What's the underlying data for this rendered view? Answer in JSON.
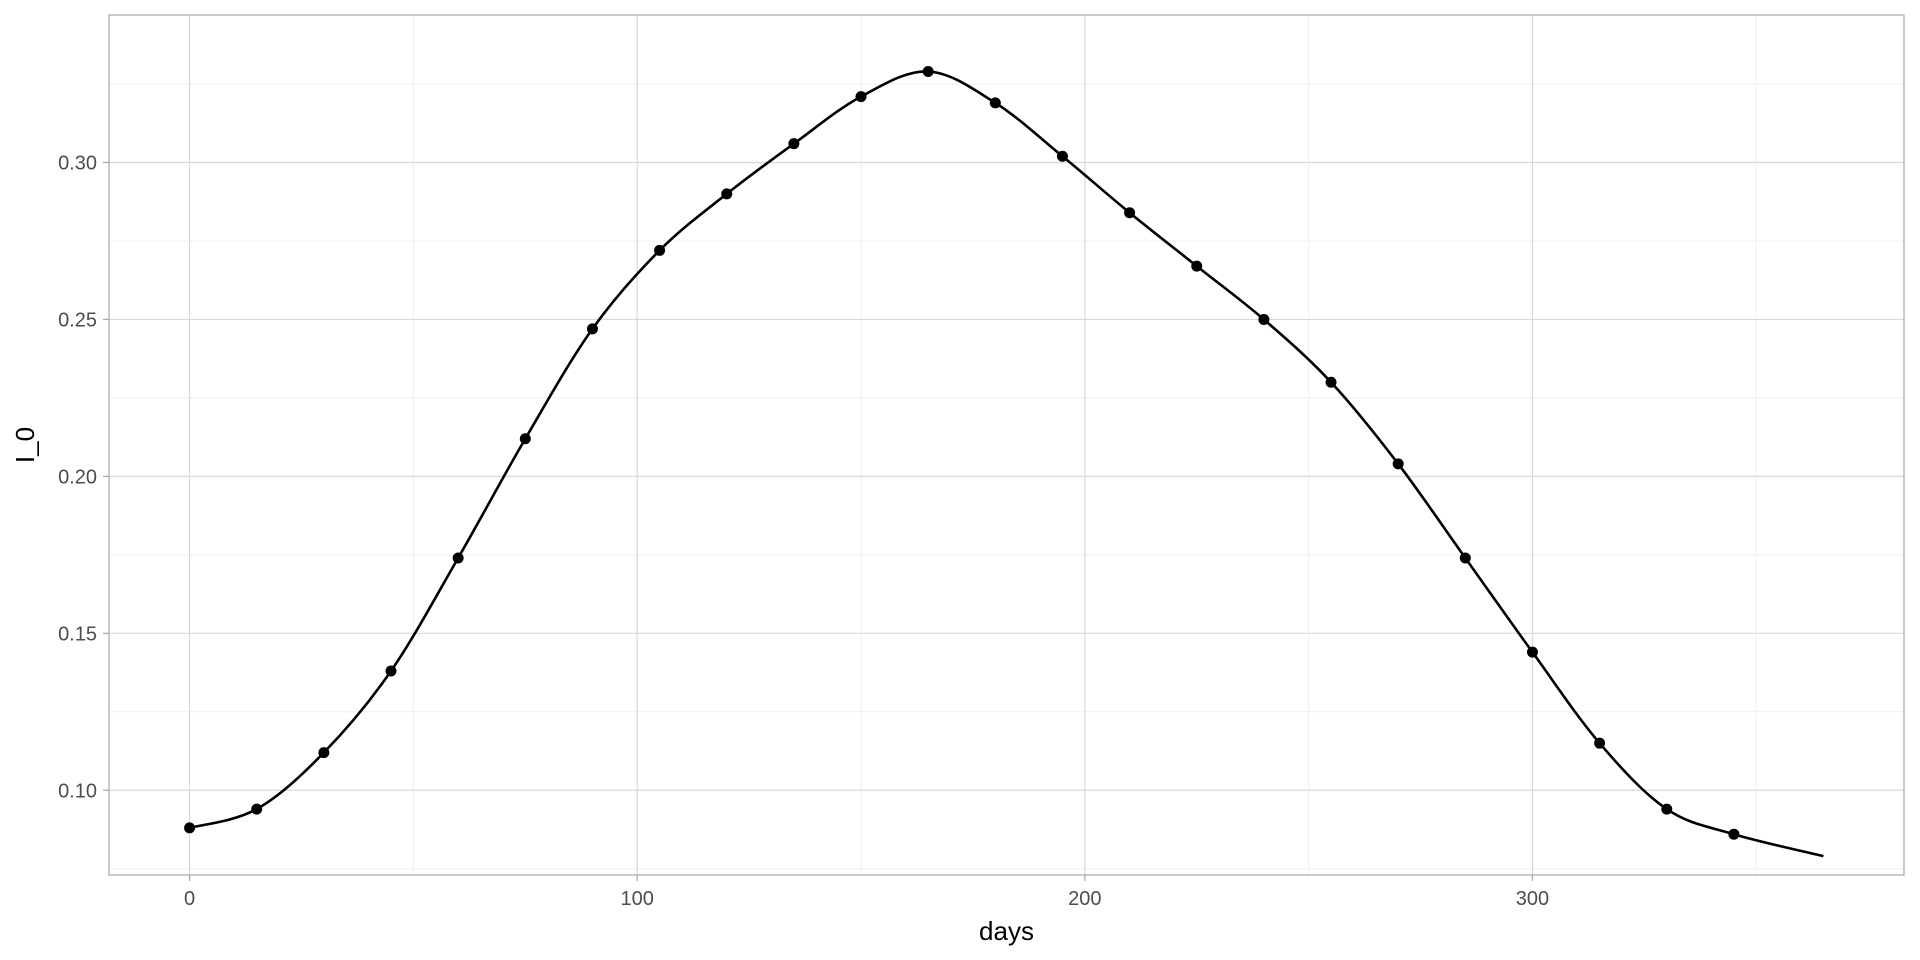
{
  "chart_data": {
    "type": "line",
    "title": "",
    "xlabel": "days",
    "ylabel": "I_0",
    "xlim": [
      -18,
      383
    ],
    "ylim": [
      0.073,
      0.347
    ],
    "x_major_ticks": [
      0,
      100,
      200,
      300
    ],
    "x_tick_labels": [
      "0",
      "100",
      "200",
      "300"
    ],
    "x_minor_ticks": [
      50,
      150,
      250,
      350
    ],
    "y_major_ticks": [
      0.1,
      0.15,
      0.2,
      0.25,
      0.3
    ],
    "y_tick_labels": [
      "0.10",
      "0.15",
      "0.20",
      "0.25",
      "0.30"
    ],
    "y_minor_ticks": [
      0.075,
      0.125,
      0.175,
      0.225,
      0.275,
      0.325
    ],
    "grid": true,
    "legend": "none",
    "series": [
      {
        "mark": "points",
        "color": "#000000",
        "x": [
          0,
          15,
          30,
          45,
          60,
          75,
          90,
          105,
          120,
          135,
          150,
          165,
          180,
          195,
          210,
          225,
          240,
          255,
          270,
          285,
          300,
          315,
          330,
          345
        ],
        "y": [
          0.088,
          0.094,
          0.112,
          0.138,
          0.174,
          0.212,
          0.247,
          0.272,
          0.29,
          0.306,
          0.321,
          0.329,
          0.319,
          0.302,
          0.284,
          0.267,
          0.25,
          0.23,
          0.204,
          0.174,
          0.144,
          0.115,
          0.094,
          0.086
        ]
      },
      {
        "mark": "smooth-line",
        "color": "#000000",
        "x": [
          0,
          15,
          30,
          45,
          60,
          75,
          90,
          105,
          120,
          135,
          150,
          165,
          180,
          195,
          210,
          225,
          240,
          255,
          270,
          285,
          300,
          315,
          330,
          345,
          365
        ],
        "y": [
          0.088,
          0.094,
          0.112,
          0.138,
          0.174,
          0.212,
          0.247,
          0.272,
          0.29,
          0.306,
          0.321,
          0.329,
          0.319,
          0.302,
          0.284,
          0.267,
          0.25,
          0.23,
          0.204,
          0.174,
          0.144,
          0.115,
          0.094,
          0.086,
          0.079
        ]
      }
    ]
  }
}
